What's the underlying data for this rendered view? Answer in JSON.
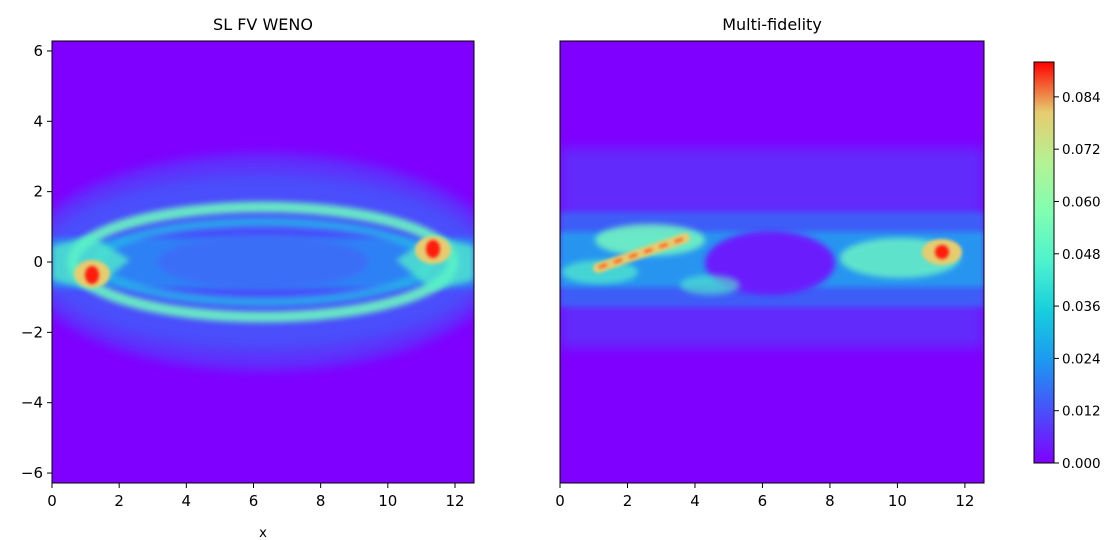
{
  "chart_data": [
    {
      "type": "heatmap",
      "title": "SL FV WENO",
      "xlabel": "x",
      "ylabel": "",
      "xlim": [
        0,
        12.566
      ],
      "ylim": [
        -6.283,
        6.283
      ],
      "xticks": [
        "0",
        "2",
        "4",
        "6",
        "8",
        "10",
        "12"
      ],
      "yticks": [
        "6",
        "4",
        "2",
        "0",
        "−2",
        "−4",
        "−6"
      ],
      "colormap": "rainbow",
      "features": [
        {
          "kind": "ring",
          "cx": 6.28,
          "cy": 0.0,
          "rx": 5.4,
          "ry": 1.65,
          "value": 0.04
        },
        {
          "kind": "band",
          "y": 0.0,
          "half_width": 0.75,
          "value": 0.03
        },
        {
          "kind": "hotspot",
          "x": 1.2,
          "y": -0.35,
          "value": 0.09
        },
        {
          "kind": "hotspot",
          "x": 11.3,
          "y": 0.35,
          "value": 0.09
        }
      ]
    },
    {
      "type": "heatmap",
      "title": "Multi-fidelity",
      "xlabel": "",
      "ylabel": "",
      "xlim": [
        0,
        12.566
      ],
      "ylim": [
        -6.283,
        6.283
      ],
      "xticks": [
        "0",
        "2",
        "4",
        "6",
        "8",
        "10",
        "12"
      ],
      "colormap": "rainbow",
      "features": [
        {
          "kind": "band",
          "y": 0.0,
          "half_width": 1.2,
          "value": 0.03
        },
        {
          "kind": "streak",
          "x0": 1.1,
          "y0": -0.1,
          "x1": 3.7,
          "y1": 0.75,
          "value": 0.075
        },
        {
          "kind": "hotspot",
          "x": 11.3,
          "y": 0.3,
          "value": 0.085
        }
      ]
    }
  ],
  "colorbar": {
    "min": 0.0,
    "max": 0.092,
    "ticks": [
      "0.084",
      "0.072",
      "0.060",
      "0.048",
      "0.036",
      "0.024",
      "0.012",
      "0.000"
    ],
    "tick_values": [
      0.084,
      0.072,
      0.06,
      0.048,
      0.036,
      0.024,
      0.012,
      0.0
    ]
  },
  "colors": {
    "background": "#7f00ff",
    "max": "#ff0000"
  }
}
